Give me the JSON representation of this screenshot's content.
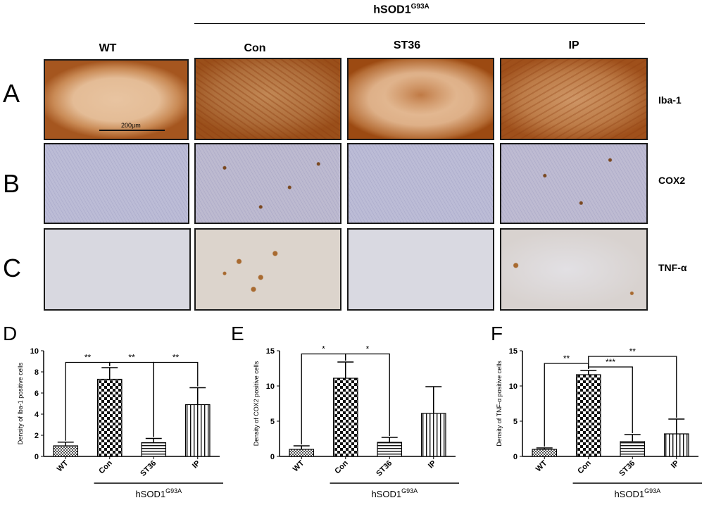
{
  "figure": {
    "group_label": "hSOD1",
    "group_sup": "G93A",
    "columns": [
      "WT",
      "Con",
      "ST36",
      "IP"
    ],
    "rows": [
      {
        "letter": "A",
        "marker": "Iba-1"
      },
      {
        "letter": "B",
        "marker": "COX2"
      },
      {
        "letter": "C",
        "marker": "TNF-α"
      }
    ],
    "scale_bar_label": "200μm",
    "stain_colors": {
      "iba1_bg": "#d7a67c",
      "iba1_stain": "#9c4a12",
      "cox2_bg": "#b9b9d3",
      "cox2_stain": "#7a4820",
      "tnf_bg": "#d6d6de",
      "tnf_stain": "#a86a30"
    }
  },
  "chart_data": [
    {
      "panel": "D",
      "type": "bar",
      "categories": [
        "WT",
        "Con",
        "ST36",
        "IP"
      ],
      "values": [
        1.0,
        7.3,
        1.3,
        4.9
      ],
      "errors": [
        0.35,
        1.1,
        0.4,
        1.6
      ],
      "ylabel": "Density of Iba-1 positive cells",
      "ylim": [
        0,
        10
      ],
      "yticks": [
        0,
        2,
        4,
        6,
        8,
        10
      ],
      "group_label": "hSOD1",
      "group_sup": "G93A",
      "significance": [
        {
          "from": 0,
          "to": 1,
          "label": "**"
        },
        {
          "from": 1,
          "to": 2,
          "label": "**"
        },
        {
          "from": 2,
          "to": 3,
          "label": "**"
        }
      ]
    },
    {
      "panel": "E",
      "type": "bar",
      "categories": [
        "WT",
        "Con",
        "ST36",
        "IP"
      ],
      "values": [
        1.0,
        11.1,
        2.0,
        6.1
      ],
      "errors": [
        0.5,
        2.3,
        0.7,
        3.8
      ],
      "ylabel": "Density of COX2 positive cells",
      "ylim": [
        0,
        15
      ],
      "yticks": [
        0,
        5,
        10,
        15
      ],
      "group_label": "hSOD1",
      "group_sup": "G93A",
      "significance": [
        {
          "from": 0,
          "to": 1,
          "label": "*"
        },
        {
          "from": 1,
          "to": 2,
          "label": "*"
        }
      ]
    },
    {
      "panel": "F",
      "type": "bar",
      "categories": [
        "WT",
        "Con",
        "ST36",
        "IP"
      ],
      "values": [
        1.0,
        11.6,
        2.1,
        3.2
      ],
      "errors": [
        0.2,
        0.6,
        1.0,
        2.1
      ],
      "ylabel": "Density of TNF-α positive cells",
      "ylim": [
        0,
        15
      ],
      "yticks": [
        0,
        5,
        10,
        15
      ],
      "group_label": "hSOD1",
      "group_sup": "G93A",
      "significance": [
        {
          "from": 0,
          "to": 1,
          "label": "**"
        },
        {
          "from": 1,
          "to": 2,
          "label": "***"
        },
        {
          "from": 1,
          "to": 3,
          "label": "**"
        }
      ]
    }
  ]
}
